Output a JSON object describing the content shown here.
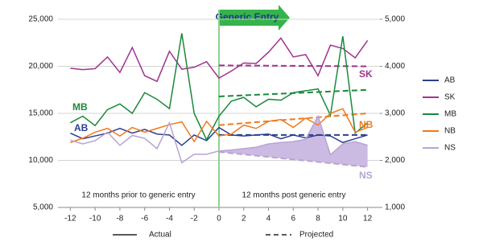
{
  "chart_data": {
    "type": "line",
    "grid": true,
    "annotations": {
      "entry": "Generic Entry",
      "before": "12 months prior to generic entry",
      "after": "12 months post generic entry"
    },
    "line_styles": {
      "actual": "Actual",
      "projected": "Projected"
    },
    "xlim": [
      -13,
      13
    ],
    "xticks": [
      -12,
      -10,
      -8,
      -6,
      -4,
      -2,
      0,
      2,
      4,
      6,
      8,
      10,
      12
    ],
    "ylim": [
      5000,
      25000
    ],
    "yticks": [
      {
        "value": 5000,
        "label": "5,000"
      },
      {
        "value": 10000,
        "label": "10,000"
      },
      {
        "value": 15000,
        "label": "15,000"
      },
      {
        "value": 20000,
        "label": "20,000"
      },
      {
        "value": 25000,
        "label": "25,000"
      }
    ],
    "y2lim": [
      1000,
      5000
    ],
    "y2ticks": [
      {
        "value": 1000,
        "label": "1,000"
      },
      {
        "value": 2000,
        "label": "2,000"
      },
      {
        "value": 3000,
        "label": "3,000"
      },
      {
        "value": 4000,
        "label": "4,000"
      },
      {
        "value": 5000,
        "label": "5,000"
      }
    ],
    "x": [
      -12,
      -11,
      -10,
      -9,
      -8,
      -7,
      -6,
      -5,
      -4,
      -3,
      -2,
      -1,
      0,
      1,
      2,
      3,
      4,
      5,
      6,
      7,
      8,
      9,
      10,
      11,
      12
    ],
    "series": [
      {
        "name": "AB",
        "color": "#2b3f8f",
        "axis": "y",
        "values": [
          12900,
          12300,
          12600,
          12900,
          13400,
          12900,
          13300,
          12800,
          12700,
          11600,
          12700,
          12100,
          13500,
          12700,
          12600,
          12700,
          12800,
          12300,
          12700,
          12400,
          12700,
          12600,
          11900,
          12300,
          12700
        ]
      },
      {
        "name": "SK",
        "color": "#a0338f",
        "axis": "y2",
        "values": [
          3960,
          3930,
          3950,
          4200,
          3870,
          4400,
          3800,
          3680,
          4320,
          3940,
          3980,
          4100,
          3750,
          3900,
          4070,
          4060,
          4300,
          4600,
          4200,
          4250,
          3800,
          4450,
          4380,
          4180,
          4550
        ]
      },
      {
        "name": "MB",
        "color": "#1a8a3a",
        "axis": "y",
        "values": [
          14000,
          14700,
          13700,
          15400,
          16000,
          15000,
          17200,
          16500,
          15500,
          23500,
          15000,
          12200,
          14700,
          16300,
          16700,
          15700,
          16500,
          16400,
          17200,
          17400,
          17600,
          14800,
          23200,
          12900,
          14000
        ]
      },
      {
        "name": "NB",
        "color": "#f07a1e",
        "axis": "y2",
        "values": [
          2380,
          2470,
          2600,
          2680,
          2520,
          2700,
          2600,
          2680,
          2760,
          2820,
          2400,
          2830,
          2520,
          2560,
          2750,
          2680,
          2830,
          2870,
          2700,
          2900,
          2750,
          3000,
          3100,
          2600,
          2700
        ]
      },
      {
        "name": "NS",
        "color": "#b9a3d3",
        "axis": "y2",
        "values": [
          2430,
          2350,
          2420,
          2600,
          2320,
          2530,
          2470,
          2250,
          2800,
          1950,
          2130,
          2130,
          2200,
          2220,
          2250,
          2280,
          2350,
          2380,
          2400,
          2450,
          2940,
          2120,
          2350,
          2400,
          2320
        ]
      }
    ],
    "projections": [
      {
        "series": "AB",
        "color": "#2b3f8f",
        "axis": "y",
        "x": [
          0,
          12
        ],
        "values": [
          12700,
          12700
        ]
      },
      {
        "series": "SK",
        "color": "#a0338f",
        "axis": "y2",
        "x": [
          0,
          12
        ],
        "values": [
          4020,
          4000
        ]
      },
      {
        "series": "MB",
        "color": "#1a8a3a",
        "axis": "y",
        "x": [
          0,
          12
        ],
        "values": [
          16800,
          17500
        ]
      },
      {
        "series": "NB",
        "color": "#f07a1e",
        "axis": "y2",
        "x": [
          0,
          12
        ],
        "values": [
          2750,
          3000
        ]
      },
      {
        "series": "NS",
        "color": "#b9a3d3",
        "axis": "y2",
        "x": [
          0,
          12
        ],
        "values": [
          2180,
          1860
        ]
      }
    ]
  }
}
